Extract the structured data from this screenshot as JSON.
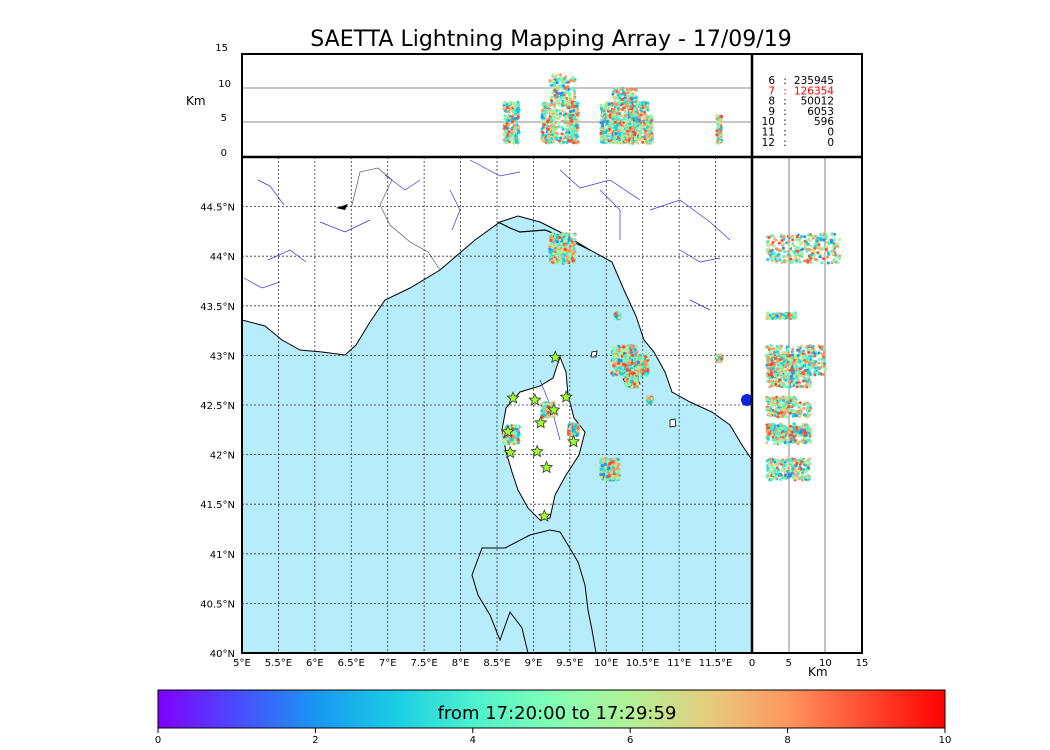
{
  "chart_data": {
    "type": "scatter",
    "title": "SAETTA Lightning Mapping Array - 17/09/19",
    "top_panel": {
      "ylabel": "Km",
      "ylim": [
        0,
        15
      ],
      "yticks": [
        "15",
        "10",
        "5",
        "0"
      ]
    },
    "map_panel": {
      "xlim": [
        5.0,
        12.0
      ],
      "ylim": [
        40.0,
        45.0
      ],
      "xticks": [
        "5°E",
        "5.5°E",
        "6°E",
        "6.5°E",
        "7°E",
        "7.5°E",
        "8°E",
        "8.5°E",
        "9°E",
        "9.5°E",
        "10°E",
        "10.5°E",
        "11°E",
        "11.5°E"
      ],
      "yticks": [
        "40°N",
        "40.5°N",
        "41°N",
        "41.5°N",
        "42°N",
        "42.5°N",
        "43°N",
        "43.5°N",
        "44°N",
        "44.5°N"
      ],
      "grid": true
    },
    "side_panel": {
      "xlabel": "Km",
      "xlim": [
        0,
        15
      ],
      "xticks": [
        "0",
        "5",
        "10",
        "15"
      ]
    },
    "counts_table": [
      {
        "min_stations": "6",
        "sep": ":",
        "count": "235945",
        "highlight": false
      },
      {
        "min_stations": "7",
        "sep": ":",
        "count": "126354",
        "highlight": true
      },
      {
        "min_stations": "8",
        "sep": ":",
        "count": "50012",
        "highlight": false
      },
      {
        "min_stations": "9",
        "sep": ":",
        "count": "6053",
        "highlight": false
      },
      {
        "min_stations": "10",
        "sep": ":",
        "count": "596",
        "highlight": false
      },
      {
        "min_stations": "11",
        "sep": ":",
        "count": "0",
        "highlight": false
      },
      {
        "min_stations": "12",
        "sep": ":",
        "count": "0",
        "highlight": false
      }
    ],
    "clusters": [
      {
        "lon": 9.4,
        "lat": 44.08,
        "alt_range": [
          2,
          12
        ],
        "size": 0.25
      },
      {
        "lon": 10.25,
        "lat": 42.95,
        "alt_range": [
          2,
          10
        ],
        "size": 0.25
      },
      {
        "lon": 10.45,
        "lat": 42.9,
        "alt_range": [
          2,
          8
        ],
        "size": 0.18
      },
      {
        "lon": 10.35,
        "lat": 42.75,
        "alt_range": [
          2,
          8
        ],
        "size": 0.12
      },
      {
        "lon": 8.7,
        "lat": 42.2,
        "alt_range": [
          2,
          8
        ],
        "size": 0.15
      },
      {
        "lon": 9.55,
        "lat": 42.25,
        "alt_range": [
          2,
          8
        ],
        "size": 0.1
      },
      {
        "lon": 9.2,
        "lat": 42.45,
        "alt_range": [
          2,
          8
        ],
        "size": 0.12
      },
      {
        "lon": 10.05,
        "lat": 41.85,
        "alt_range": [
          2,
          8
        ],
        "size": 0.18
      },
      {
        "lon": 10.15,
        "lat": 43.4,
        "alt_range": [
          2,
          6
        ],
        "size": 0.05
      },
      {
        "lon": 10.6,
        "lat": 42.55,
        "alt_range": [
          2,
          6
        ],
        "size": 0.05
      },
      {
        "lon": 11.55,
        "lat": 42.97,
        "alt_range": [
          2,
          6
        ],
        "size": 0.05
      }
    ],
    "stations": [
      {
        "lon": 8.72,
        "lat": 42.57
      },
      {
        "lon": 9.02,
        "lat": 42.55
      },
      {
        "lon": 9.3,
        "lat": 42.98
      },
      {
        "lon": 9.45,
        "lat": 42.58
      },
      {
        "lon": 9.28,
        "lat": 42.45
      },
      {
        "lon": 9.1,
        "lat": 42.32
      },
      {
        "lon": 8.65,
        "lat": 42.23
      },
      {
        "lon": 9.55,
        "lat": 42.13
      },
      {
        "lon": 8.68,
        "lat": 42.02
      },
      {
        "lon": 9.05,
        "lat": 42.03
      },
      {
        "lon": 9.18,
        "lat": 41.87
      },
      {
        "lon": 9.15,
        "lat": 41.38
      }
    ],
    "colorbar": {
      "label": "from 17:20:00 to 17:29:59",
      "range": [
        0,
        10
      ],
      "ticks": [
        "0",
        "2",
        "4",
        "6",
        "8",
        "10"
      ],
      "colors": [
        "#7f00ff",
        "#4b4bff",
        "#1996f3",
        "#19cce4",
        "#4cf2ce",
        "#80ffb4",
        "#b2f296",
        "#e5cc7e",
        "#ff9660",
        "#ff4b31",
        "#ff0000"
      ]
    }
  }
}
